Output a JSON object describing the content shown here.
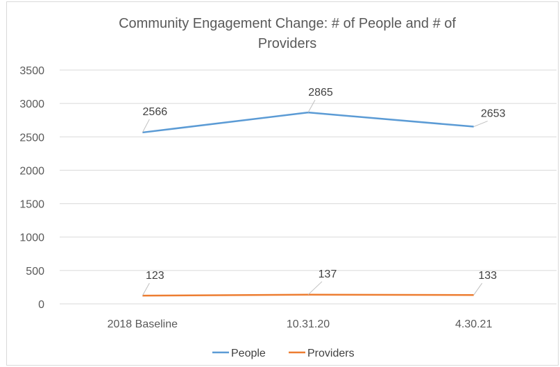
{
  "chart_data": {
    "type": "line",
    "title_lines": [
      "Community Engagement Change: # of People and # of",
      "Providers"
    ],
    "categories": [
      "2018 Baseline",
      "10.31.20",
      "4.30.21"
    ],
    "series": [
      {
        "name": "People",
        "values": [
          2566,
          2865,
          2653
        ],
        "color": "#5b9bd5"
      },
      {
        "name": "Providers",
        "values": [
          123,
          137,
          133
        ],
        "color": "#ed7d31"
      }
    ],
    "ylim": [
      0,
      3500
    ],
    "y_ticks": [
      0,
      500,
      1000,
      1500,
      2000,
      2500,
      3000,
      3500
    ],
    "grid": true,
    "legend_position": "bottom",
    "data_labels": true,
    "gridline_color": "#d9d9d9",
    "leader_line_color": "#bfbfbf"
  }
}
